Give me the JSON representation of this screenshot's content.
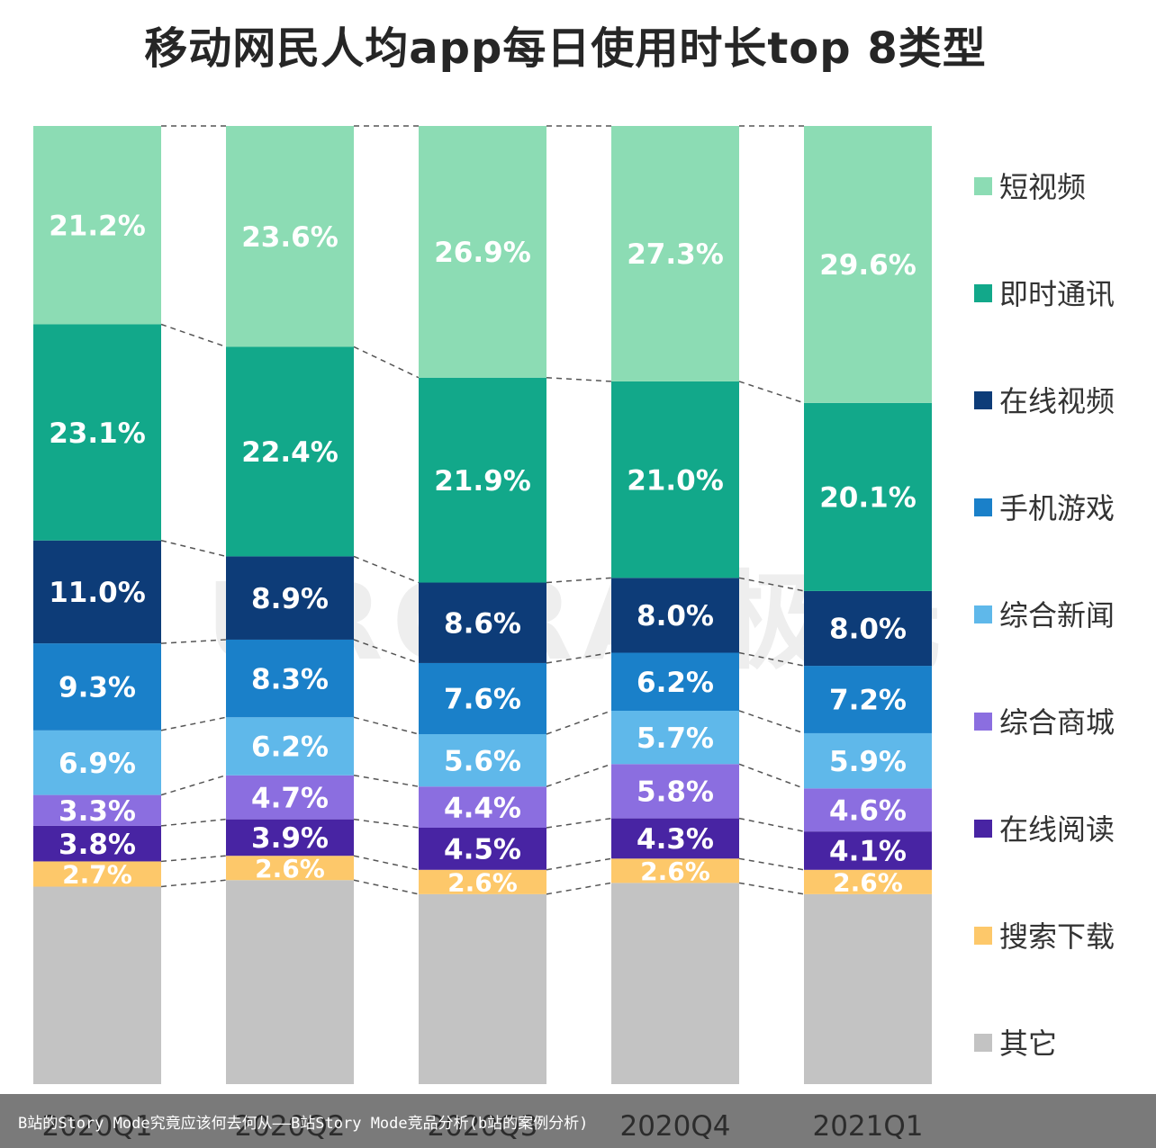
{
  "chart_data": {
    "type": "bar",
    "stacked": true,
    "title": "移动网民人均app每日使用时长top 8类型",
    "categories": [
      "2020Q1",
      "2020Q2",
      "2020Q3",
      "2020Q4",
      "2021Q1"
    ],
    "series": [
      {
        "name": "其它",
        "color": "#c3c3c3",
        "values": [
          null,
          null,
          null,
          null,
          null
        ],
        "labels": [
          "",
          "",
          "",
          "",
          ""
        ]
      },
      {
        "name": "搜索下载",
        "color": "#fdc86a",
        "values": [
          2.7,
          2.6,
          2.6,
          2.6,
          2.6
        ],
        "labels": [
          "2.7%",
          "2.6%",
          "2.6%",
          "2.6%",
          "2.6%"
        ]
      },
      {
        "name": "在线阅读",
        "color": "#4824a3",
        "values": [
          3.8,
          3.9,
          4.5,
          4.3,
          4.1
        ],
        "labels": [
          "3.8%",
          "3.9%",
          "4.5%",
          "4.3%",
          "4.1%"
        ]
      },
      {
        "name": "综合商城",
        "color": "#8b6ee0",
        "values": [
          3.3,
          4.7,
          4.4,
          5.8,
          4.6
        ],
        "labels": [
          "3.3%",
          "4.7%",
          "4.4%",
          "5.8%",
          "4.6%"
        ]
      },
      {
        "name": "综合新闻",
        "color": "#5fb8ea",
        "values": [
          6.9,
          6.2,
          5.6,
          5.7,
          5.9
        ],
        "labels": [
          "6.9%",
          "6.2%",
          "5.6%",
          "5.7%",
          "5.9%"
        ]
      },
      {
        "name": "手机游戏",
        "color": "#1a80c9",
        "values": [
          9.3,
          8.3,
          7.6,
          6.2,
          7.2
        ],
        "labels": [
          "9.3%",
          "8.3%",
          "7.6%",
          "6.2%",
          "7.2%"
        ]
      },
      {
        "name": "在线视频",
        "color": "#0d3c78",
        "values": [
          11.0,
          8.9,
          8.6,
          8.0,
          8.0
        ],
        "labels": [
          "11.0%",
          "8.9%",
          "8.6%",
          "8.0%",
          "8.0%"
        ]
      },
      {
        "name": "即时通讯",
        "color": "#12a88a",
        "values": [
          23.1,
          22.4,
          21.9,
          21.0,
          20.1
        ],
        "labels": [
          "23.1%",
          "22.4%",
          "21.9%",
          "21.0%",
          "20.1%"
        ]
      },
      {
        "name": "短视频",
        "color": "#8cdcb4",
        "values": [
          21.2,
          23.6,
          26.9,
          27.3,
          29.6
        ],
        "labels": [
          "21.2%",
          "23.6%",
          "26.9%",
          "27.3%",
          "29.6%"
        ]
      }
    ],
    "legend": [
      "短视频",
      "即时通讯",
      "在线视频",
      "手机游戏",
      "综合新闻",
      "综合商城",
      "在线阅读",
      "搜索下载",
      "其它"
    ],
    "legend_position": "right",
    "unit": "%",
    "connector_lines": "dashed",
    "grid": false
  },
  "watermark": "URORA 极光",
  "caption": "B站的Story Mode究竟应该何去何从——B站Story Mode竞品分析(b站的案例分析)"
}
